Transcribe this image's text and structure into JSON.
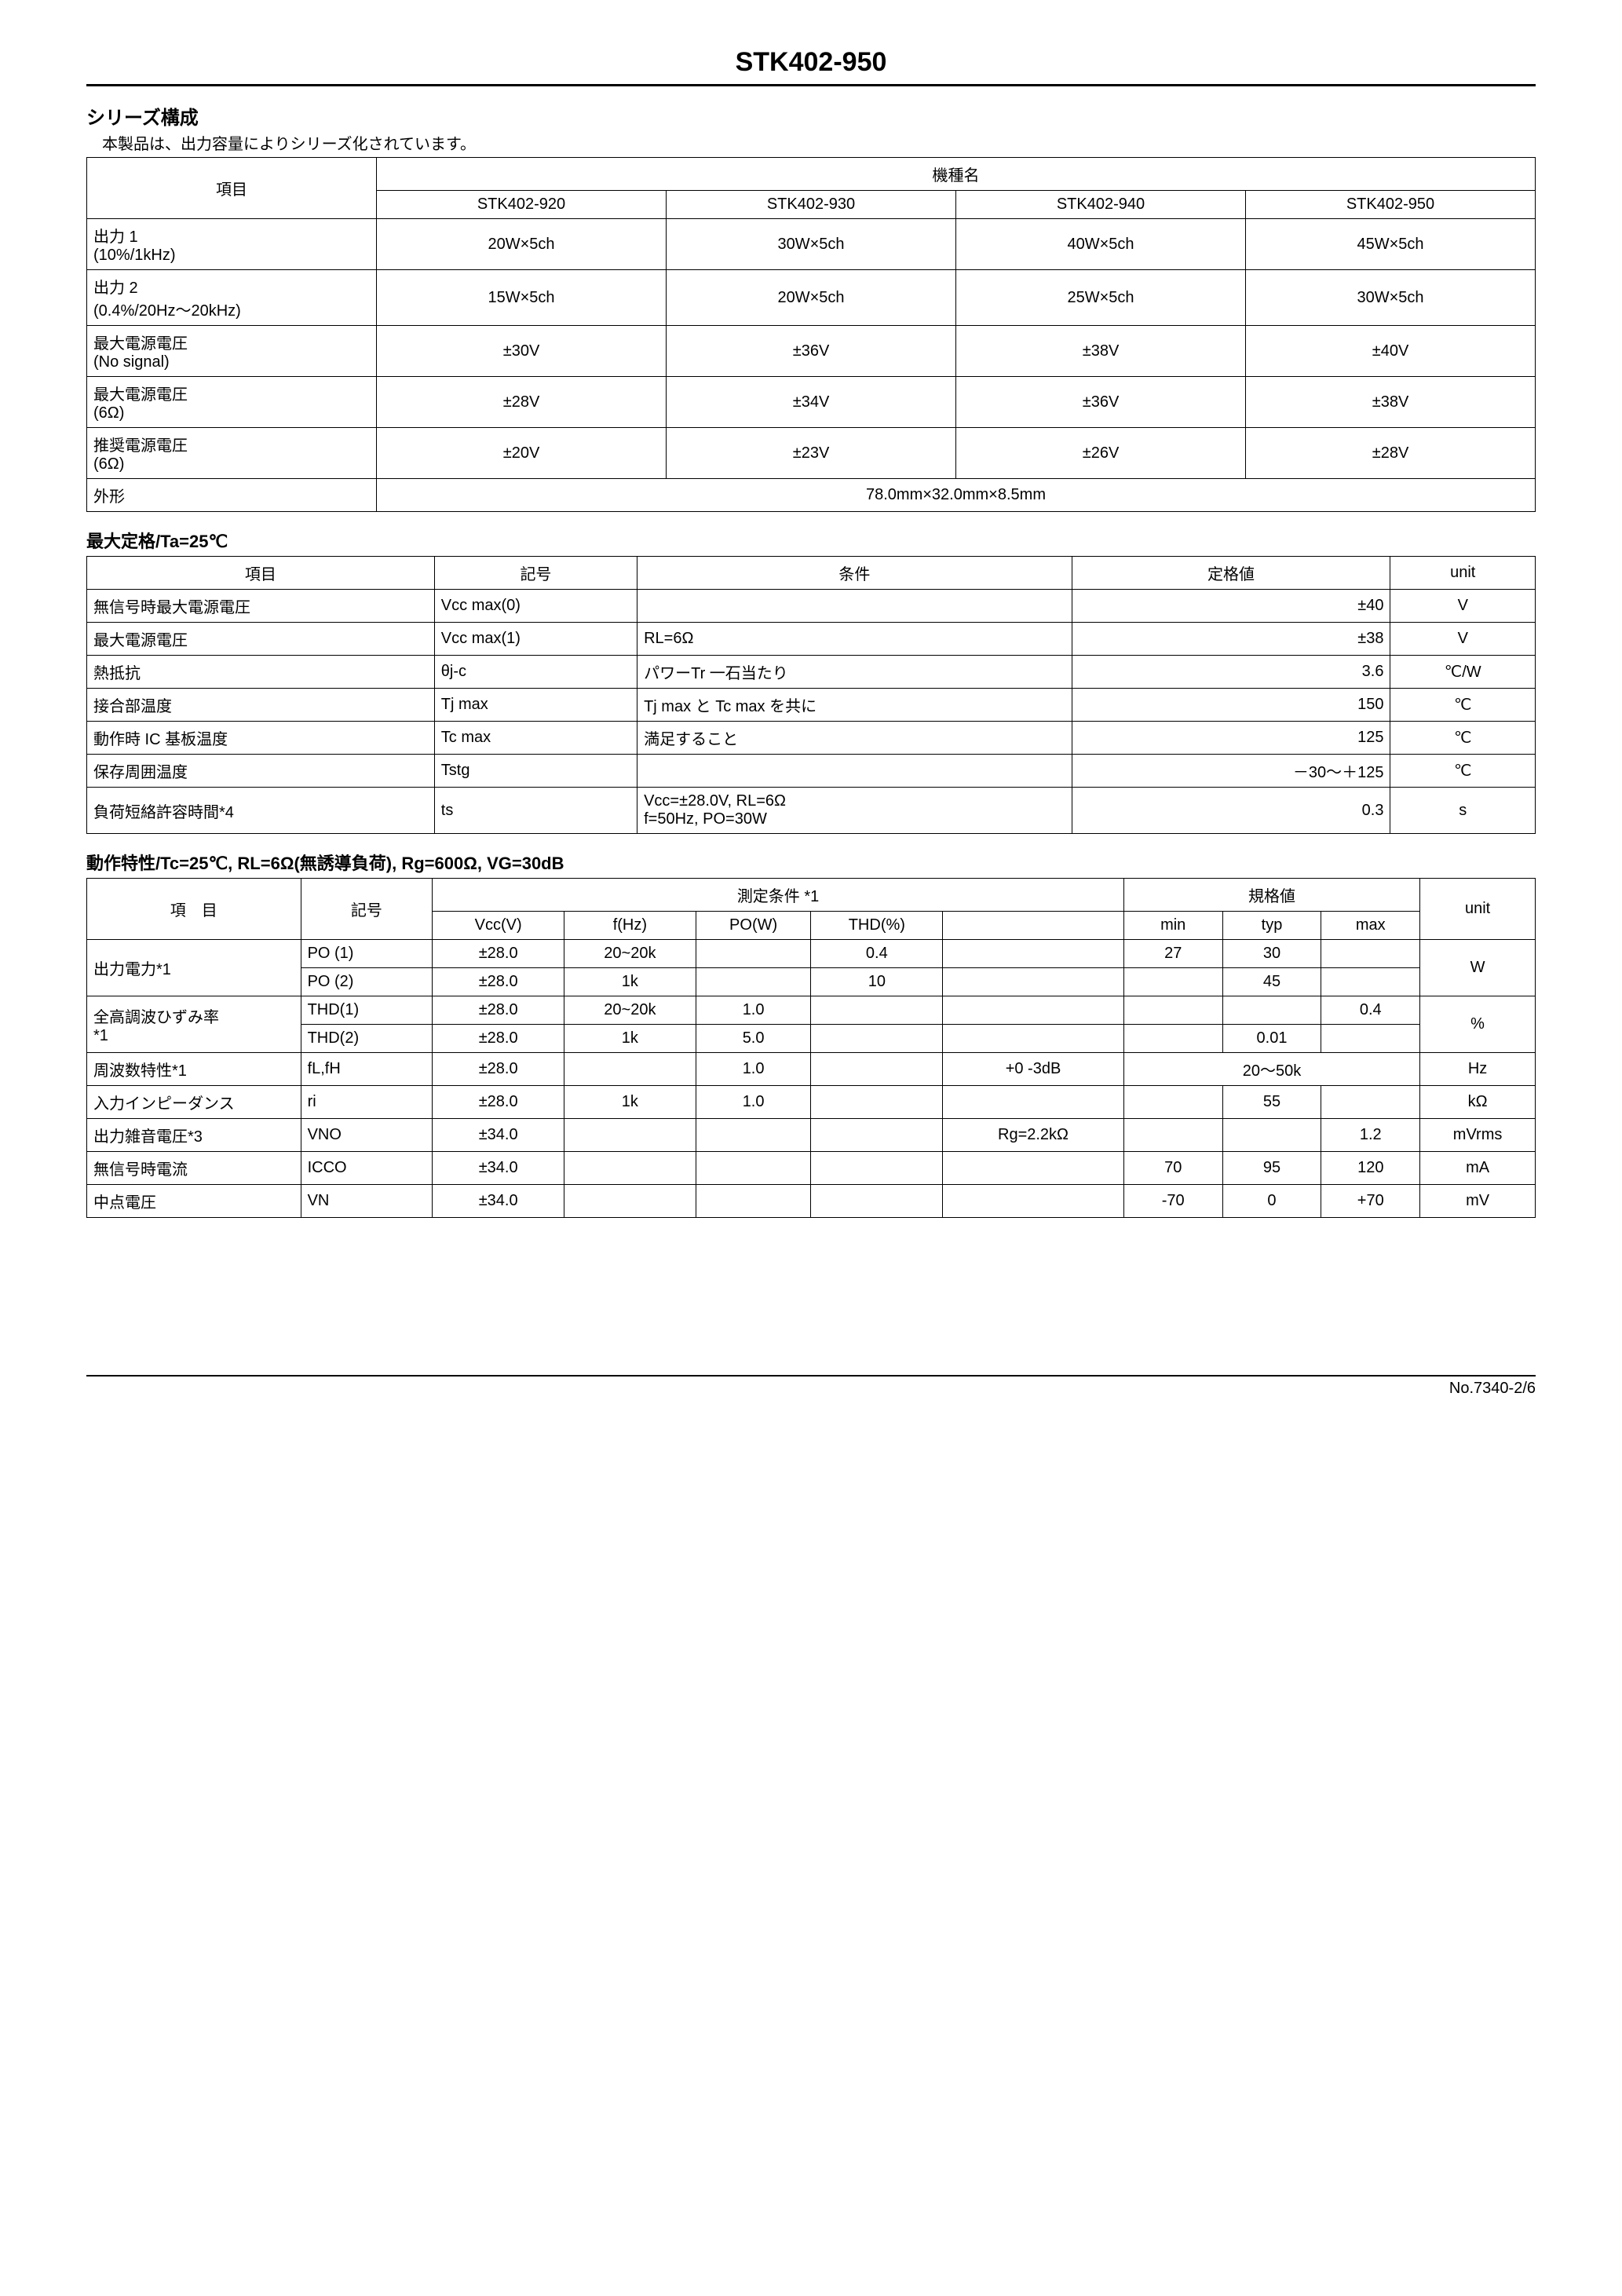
{
  "header": {
    "title": "STK402-950"
  },
  "series": {
    "title": "シリーズ構成",
    "sub": "本製品は、出力容量によりシリーズ化されています。",
    "col_item": "項目",
    "col_model": "機種名",
    "models": [
      "STK402-920",
      "STK402-930",
      "STK402-940",
      "STK402-950"
    ],
    "rows": [
      {
        "label": "出力 1\n(10%/1kHz)",
        "vals": [
          "20W×5ch",
          "30W×5ch",
          "40W×5ch",
          "45W×5ch"
        ]
      },
      {
        "label": "出力 2\n(0.4%/20Hz～20kHz)",
        "vals": [
          "15W×5ch",
          "20W×5ch",
          "25W×5ch",
          "30W×5ch"
        ]
      },
      {
        "label": "最大電源電圧\n(No signal)",
        "vals": [
          "±30V",
          "±36V",
          "±38V",
          "±40V"
        ]
      },
      {
        "label": "最大電源電圧\n(6Ω)",
        "vals": [
          "±28V",
          "±34V",
          "±36V",
          "±38V"
        ]
      },
      {
        "label": "推奨電源電圧\n(6Ω)",
        "vals": [
          "±20V",
          "±23V",
          "±26V",
          "±28V"
        ]
      }
    ],
    "shape_label": "外形",
    "shape_val": "78.0mm×32.0mm×8.5mm"
  },
  "maxratings": {
    "title": "最大定格/Ta=25℃",
    "headers": [
      "項目",
      "記号",
      "条件",
      "定格値",
      "unit"
    ],
    "rows": [
      {
        "item": "無信号時最大電源電圧",
        "sym": "Vcc max(0)",
        "cond": "",
        "val": "±40",
        "unit": "V"
      },
      {
        "item": "最大電源電圧",
        "sym": "Vcc max(1)",
        "cond": "RL=6Ω",
        "val": "±38",
        "unit": "V"
      },
      {
        "item": "熱抵抗",
        "sym": "θj-c",
        "cond": "パワーTr 一石当たり",
        "val": "3.6",
        "unit": "℃/W"
      },
      {
        "item": "接合部温度",
        "sym": "Tj max",
        "cond": "Tj max と Tc max を共に",
        "val": "150",
        "unit": "℃"
      },
      {
        "item": "動作時 IC 基板温度",
        "sym": "Tc max",
        "cond": "満足すること",
        "val": "125",
        "unit": "℃"
      },
      {
        "item": "保存周囲温度",
        "sym": "Tstg",
        "cond": "",
        "val": "－30～＋125",
        "unit": "℃"
      },
      {
        "item": "負荷短絡許容時間*4",
        "sym": "ts",
        "cond": "Vcc=±28.0V, RL=6Ω\nf=50Hz, PO=30W",
        "val": "0.3",
        "unit": "s"
      }
    ]
  },
  "opchar": {
    "title": "動作特性/Tc=25℃, RL=6Ω(無誘導負荷), Rg=600Ω, VG=30dB",
    "h_item": "項　目",
    "h_sym": "記号",
    "h_cond": "測定条件 *1",
    "h_spec": "規格値",
    "h_unit": "unit",
    "sub_cond": [
      "Vcc(V)",
      "f(Hz)",
      "PO(W)",
      "THD(%)",
      ""
    ],
    "sub_spec": [
      "min",
      "typ",
      "max"
    ],
    "rows": [
      {
        "item": "出力電力*1",
        "sym": "PO (1)",
        "vcc": "±28.0",
        "f": "20~20k",
        "po": "",
        "thd": "0.4",
        "ex": "",
        "min": "27",
        "typ": "30",
        "max": "",
        "unit": "W",
        "rowspan_item": 2,
        "rowspan_unit": 2
      },
      {
        "item": "",
        "sym": "PO (2)",
        "vcc": "±28.0",
        "f": "1k",
        "po": "",
        "thd": "10",
        "ex": "",
        "min": "",
        "typ": "45",
        "max": "",
        "unit": ""
      },
      {
        "item": "全高調波ひずみ率\n*1",
        "sym": "THD(1)",
        "vcc": "±28.0",
        "f": "20~20k",
        "po": "1.0",
        "thd": "",
        "ex": "",
        "min": "",
        "typ": "",
        "max": "0.4",
        "unit": "%",
        "rowspan_item": 2,
        "rowspan_unit": 2
      },
      {
        "item": "",
        "sym": "THD(2)",
        "vcc": "±28.0",
        "f": "1k",
        "po": "5.0",
        "thd": "",
        "ex": "",
        "min": "",
        "typ": "0.01",
        "max": "",
        "unit": ""
      },
      {
        "item": "周波数特性*1",
        "sym": "fL,fH",
        "vcc": "±28.0",
        "f": "",
        "po": "1.0",
        "thd": "",
        "ex": "+0 -3dB",
        "min": "",
        "typ": "20～50k",
        "max": "",
        "unit": "Hz",
        "typ_span": 3
      },
      {
        "item": "入力インピーダンス",
        "sym": "ri",
        "vcc": "±28.0",
        "f": "1k",
        "po": "1.0",
        "thd": "",
        "ex": "",
        "min": "",
        "typ": "55",
        "max": "",
        "unit": "kΩ"
      },
      {
        "item": "出力雑音電圧*3",
        "sym": "VNO",
        "vcc": "±34.0",
        "f": "",
        "po": "",
        "thd": "",
        "ex": "Rg=2.2kΩ",
        "min": "",
        "typ": "",
        "max": "1.2",
        "unit": "mVrms"
      },
      {
        "item": "無信号時電流",
        "sym": "ICCO",
        "vcc": "±34.0",
        "f": "",
        "po": "",
        "thd": "",
        "ex": "",
        "min": "70",
        "typ": "95",
        "max": "120",
        "unit": "mA"
      },
      {
        "item": "中点電圧",
        "sym": "VN",
        "vcc": "±34.0",
        "f": "",
        "po": "",
        "thd": "",
        "ex": "",
        "min": "-70",
        "typ": "0",
        "max": "+70",
        "unit": "mV"
      }
    ]
  },
  "footer": {
    "text": "No.7340-2/6"
  },
  "styles": {
    "bg": "#ffffff",
    "fg": "#000000",
    "border": "#000000",
    "title_fontsize": 34,
    "body_fontsize": 20
  }
}
